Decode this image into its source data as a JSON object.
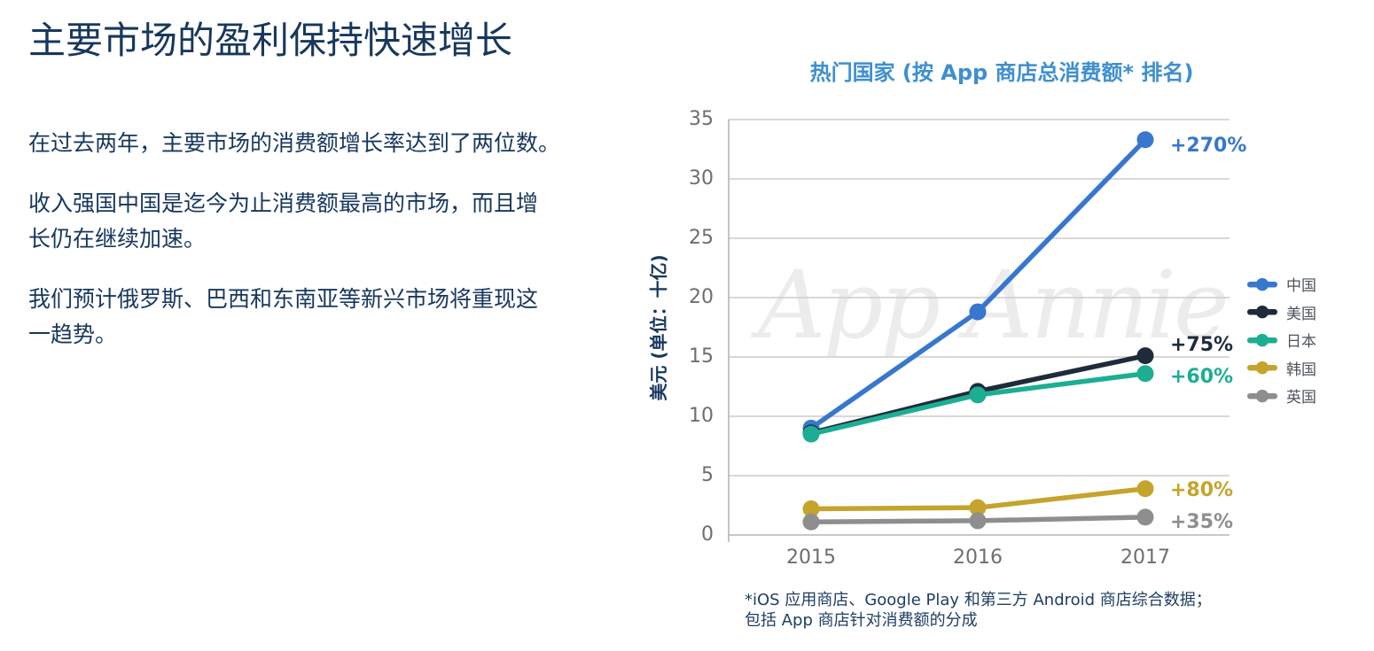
{
  "page": {
    "title": "主要市场的盈利保持快速增长",
    "paragraphs": [
      "在过去两年，主要市场的消费额增长率达到了两位数。",
      "收入强国中国是迄今为止消费额最高的市场，而且增长仍在继续加速。",
      "我们预计俄罗斯、巴西和东南亚等新兴市场将重现这一趋势。"
    ]
  },
  "chart": {
    "title": "热门国家 (按 App 商店总消费额* 排名)",
    "watermark": "App Annie",
    "footnote_lines": [
      "*iOS 应用商店、Google Play 和第三方 Android 商店综合数据；",
      "包括 App 商店针对消费额的分成"
    ]
  },
  "chart_data": {
    "type": "line",
    "title": "热门国家 (按 App 商店总消费额* 排名)",
    "categories": [
      "2015",
      "2016",
      "2017"
    ],
    "series": [
      {
        "name": "中国",
        "values": [
          9.0,
          18.8,
          33.3
        ],
        "change_label": "+270%",
        "color": "#3777CE"
      },
      {
        "name": "美国",
        "values": [
          8.6,
          12.1,
          15.1
        ],
        "change_label": "+75%",
        "color": "#1E2B3B"
      },
      {
        "name": "日本",
        "values": [
          8.5,
          11.8,
          13.6
        ],
        "change_label": "+60%",
        "color": "#1CAE93"
      },
      {
        "name": "韩国",
        "values": [
          2.2,
          2.3,
          3.9
        ],
        "change_label": "+80%",
        "color": "#C4A42B"
      },
      {
        "name": "英国",
        "values": [
          1.1,
          1.2,
          1.5
        ],
        "change_label": "+35%",
        "color": "#8E8E8E"
      }
    ],
    "xlabel": "",
    "ylabel": "美元 (单位：十亿)",
    "ylim": [
      0,
      35
    ],
    "ytick_step": 5,
    "grid": true,
    "legend_position": "right",
    "annotation_dy": [
      7,
      -12,
      4,
      2,
      6
    ]
  },
  "colors": {
    "text_navy": "#17375E",
    "chart_title_blue": "#3E8FD0",
    "grid_gray": "#CBCBCB",
    "axis_gray": "#B5B5B5",
    "tick_gray": "#6E6E6E",
    "legend_label": "#4D545B",
    "watermark_gray": "#ECECEC",
    "footnote_navy": "#1F3E63"
  }
}
